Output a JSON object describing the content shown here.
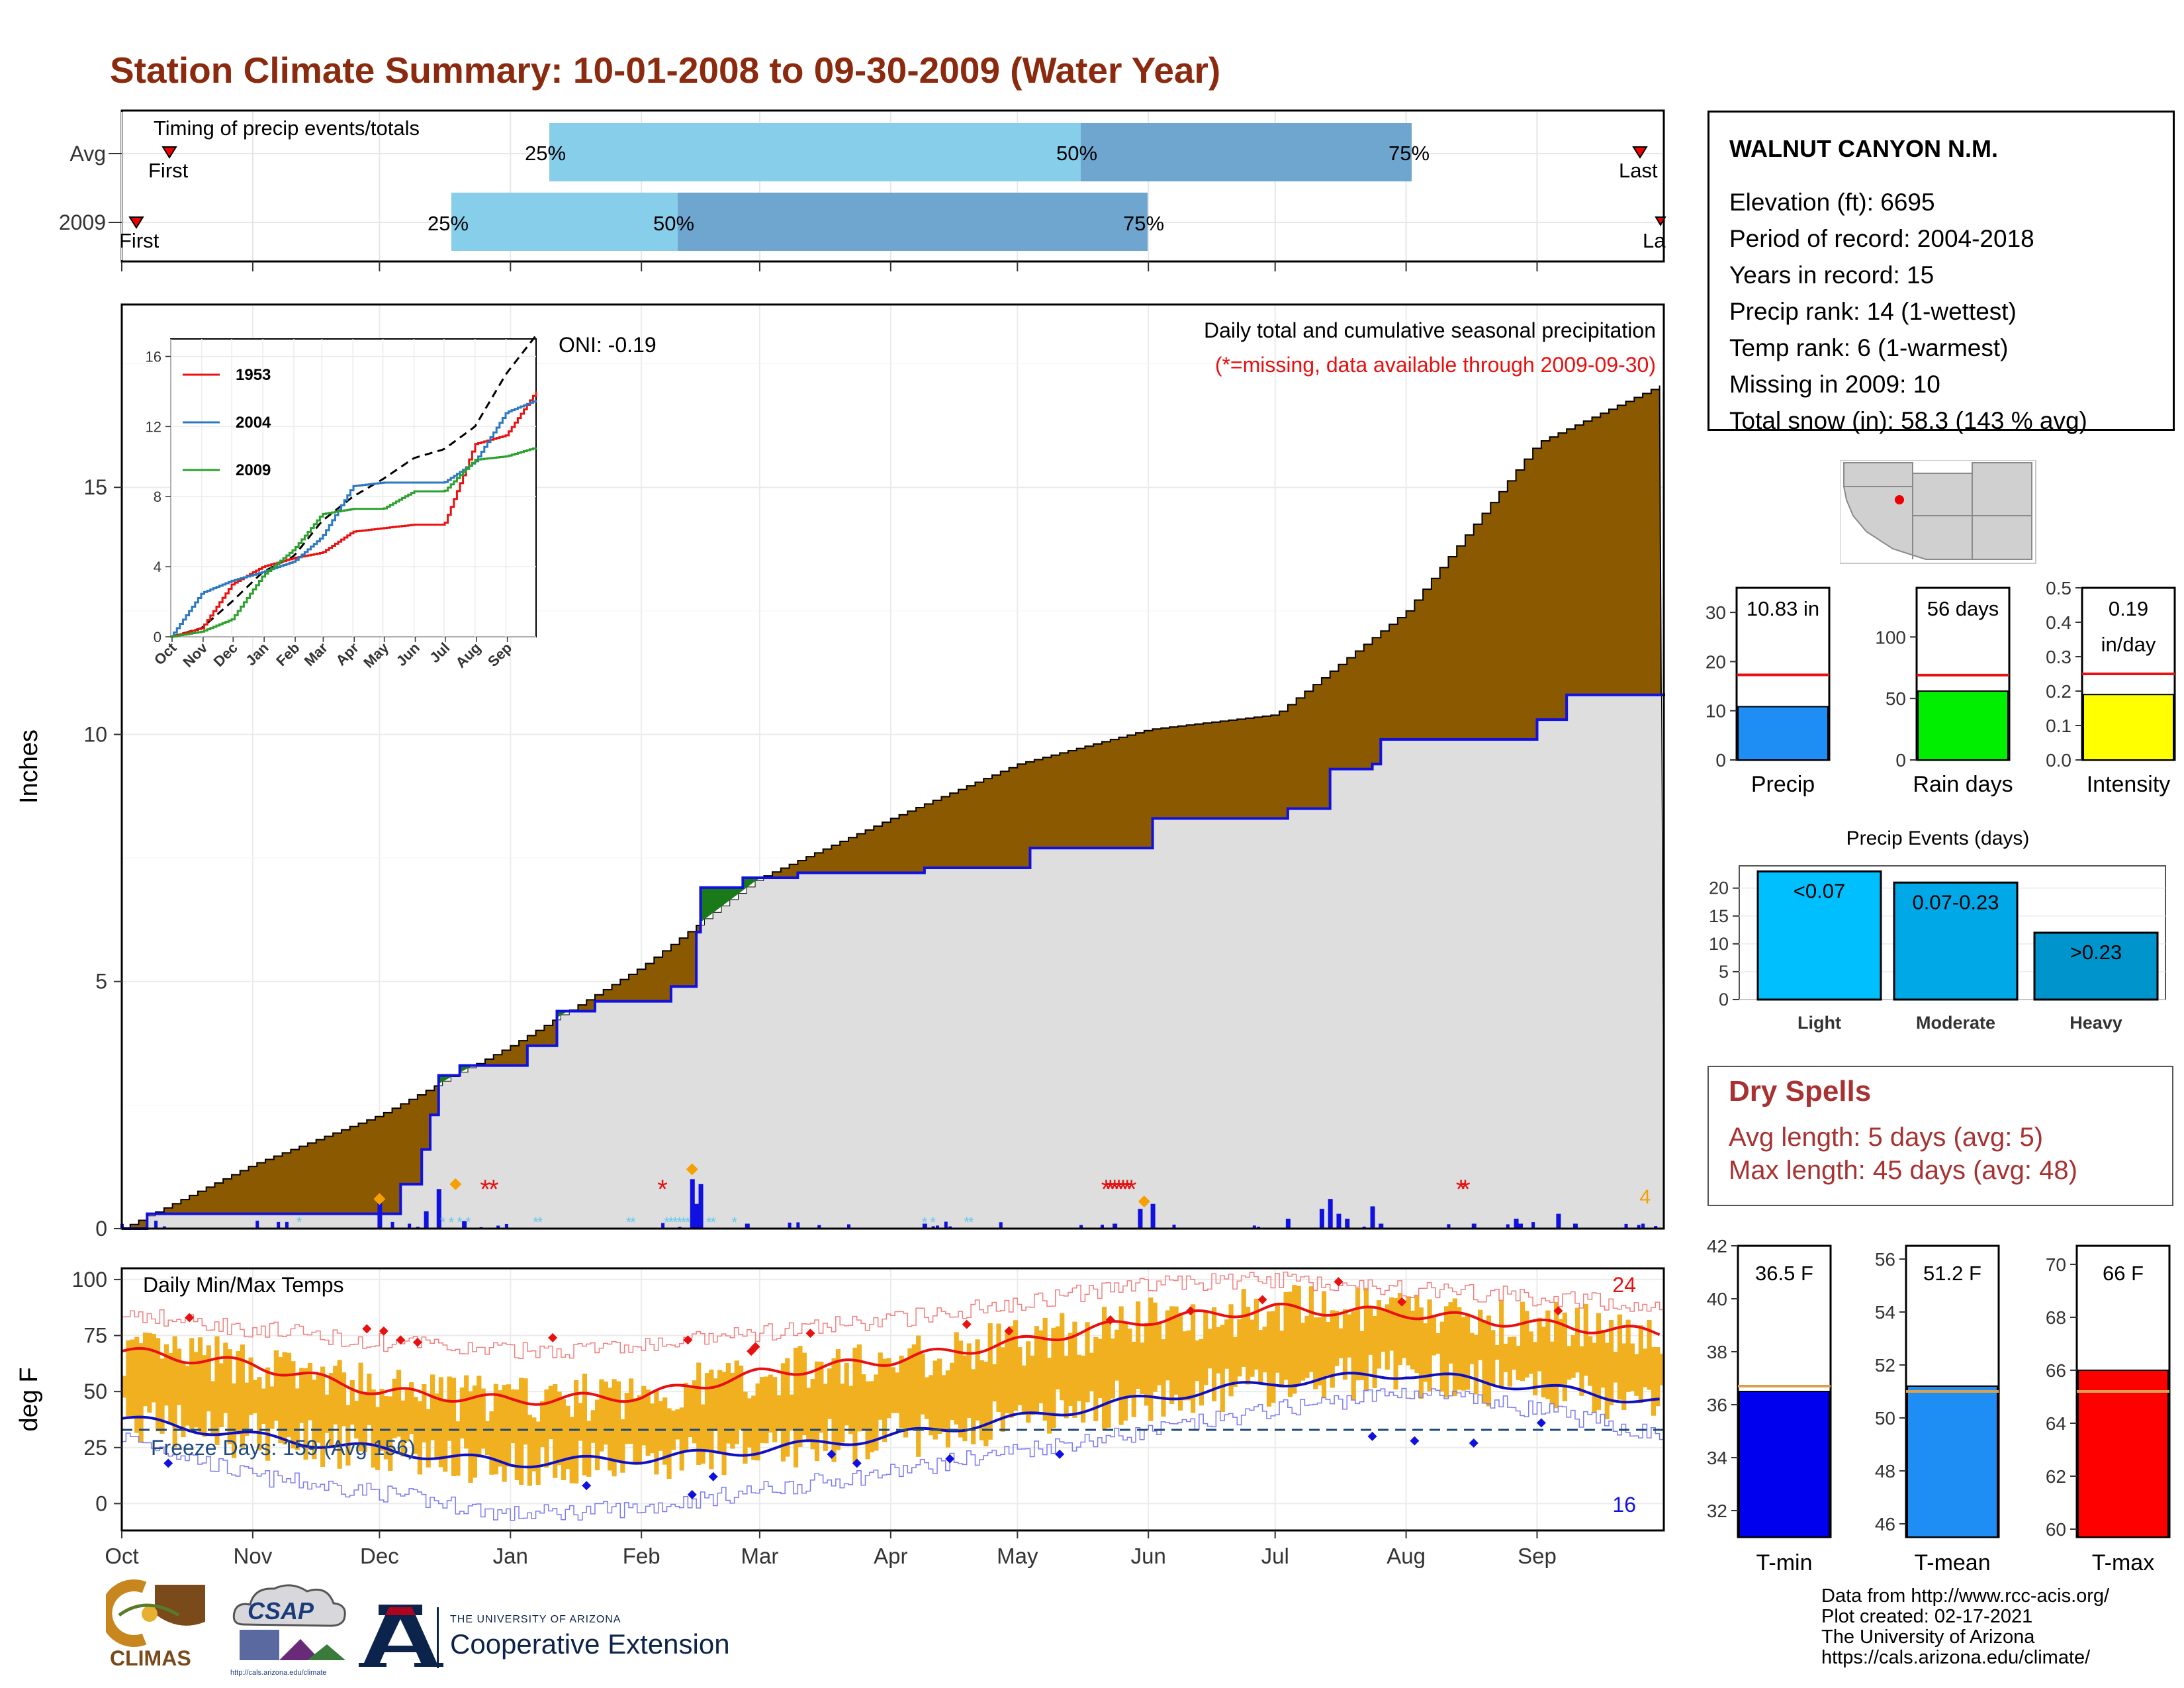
{
  "title": "Station Climate Summary: 10-01-2008 to 09-30-2009 (Water Year)",
  "colors": {
    "title": "#8b2a0e",
    "brown": "#8b5a00",
    "green": "#1a7a1a",
    "gray": "#dedede",
    "blue": "#1010e0",
    "orange": "#f0b020",
    "red": "#e81010",
    "drySpell": "#a83232"
  },
  "timing": {
    "label": "Timing of precip events/totals",
    "rows": [
      {
        "name": "Avg",
        "first": "First",
        "last": "Last",
        "p25": "25%",
        "p50": "50%",
        "p75": "75%"
      },
      {
        "name": "2009",
        "first": "First",
        "last": "La",
        "p25": "25%",
        "p50": "50%",
        "p75": "75%"
      }
    ]
  },
  "precip": {
    "ylabel": "Inches",
    "caption": "Daily total and cumulative seasonal precipitation",
    "missing_note": "(*=missing, data available through 2009-09-30)",
    "oni": "ONI: -0.19",
    "corner_count": "4",
    "yticks": [
      "0",
      "5",
      "10",
      "15"
    ]
  },
  "inset": {
    "legend": [
      "1953",
      "2004",
      "2009"
    ],
    "yticks": [
      "0",
      "4",
      "8",
      "12",
      "16"
    ],
    "xticks": [
      "Oct",
      "Nov",
      "Dec",
      "Jan",
      "Feb",
      "Mar",
      "Apr",
      "May",
      "Jun",
      "Jul",
      "Aug",
      "Sep"
    ]
  },
  "temps": {
    "label": "Daily Min/Max Temps",
    "ylabel": "deg F",
    "freeze": "Freeze Days: 159 (Avg 156)",
    "count_hot": "24",
    "count_cold": "16",
    "yticks": [
      "0",
      "25",
      "50",
      "75",
      "100"
    ]
  },
  "xticks": [
    "Oct",
    "Nov",
    "Dec",
    "Jan",
    "Feb",
    "Mar",
    "Apr",
    "May",
    "Jun",
    "Jul",
    "Aug",
    "Sep"
  ],
  "station": {
    "name": "WALNUT CANYON N.M.",
    "lines": [
      "Elevation (ft): 6695",
      "Period of record: 2004-2018",
      "Years in record: 15",
      "Precip rank: 14 (1-wettest)",
      "Temp rank: 6 (1-warmest)",
      "Missing in 2009: 10",
      "Total snow (in): 58.3 (143 % avg)"
    ]
  },
  "summary_bars": {
    "precip": {
      "label": "Precip",
      "value_text": "10.83 in",
      "value": 10.83,
      "avg": 17.3,
      "ymax": 35,
      "yticks": [
        "0",
        "10",
        "20",
        "30"
      ]
    },
    "rain_days": {
      "label": "Rain days",
      "value_text": "56 days",
      "value": 56,
      "avg": 69,
      "ymax": 140,
      "yticks": [
        "0",
        "50",
        "100"
      ]
    },
    "intensity": {
      "label": "Intensity",
      "value_text": "0.19",
      "value_text2": "in/day",
      "value": 0.19,
      "avg": 0.25,
      "ymax": 0.5,
      "yticks": [
        "0.0",
        "0.1",
        "0.2",
        "0.3",
        "0.4",
        "0.5"
      ]
    }
  },
  "precip_events": {
    "title": "Precip Events (days)",
    "categories": [
      "Light",
      "Moderate",
      "Heavy"
    ],
    "labels": [
      "<0.07",
      "0.07-0.23",
      ">0.23"
    ],
    "values": [
      23,
      21,
      12
    ],
    "yticks": [
      "0",
      "5",
      "10",
      "15",
      "20"
    ]
  },
  "dry_spells": {
    "title": "Dry Spells",
    "avg_line": "Avg length: 5 days (avg: 5)",
    "max_line": "Max length: 45 days (avg: 48)"
  },
  "temp_bars": {
    "tmin": {
      "label": "T-min",
      "value_text": "36.5 F",
      "value": 36.5,
      "avg": 36.7,
      "ymin": 31,
      "ymax": 42,
      "yticks": [
        "32",
        "34",
        "36",
        "38",
        "40",
        "42"
      ]
    },
    "tmean": {
      "label": "T-mean",
      "value_text": "51.2 F",
      "value": 51.2,
      "avg": 51.0,
      "ymin": 45.5,
      "ymax": 56.5,
      "yticks": [
        "46",
        "48",
        "50",
        "52",
        "54",
        "56"
      ]
    },
    "tmax": {
      "label": "T-max",
      "value_text": "66 F",
      "value": 66,
      "avg": 65.2,
      "ymin": 59.7,
      "ymax": 70.7,
      "yticks": [
        "60",
        "62",
        "64",
        "66",
        "68",
        "70"
      ]
    }
  },
  "credits": [
    "Data from http://www.rcc-acis.org/",
    "Plot created: 02-17-2021",
    "The University of Arizona",
    "https://cals.arizona.edu/climate/"
  ],
  "logos": {
    "climas": "CLIMAS",
    "csap": "CSAP",
    "csap_url": "http://cals.arizona.edu/climate",
    "ua_small": "THE UNIVERSITY OF ARIZONA",
    "ua_big": "Cooperative Extension"
  },
  "chart_data": [
    {
      "type": "area",
      "caption": "Daily total and cumulative seasonal precipitation",
      "ylabel": "Inches",
      "ylim": [
        0,
        18.7
      ],
      "x": [
        "Oct",
        "Nov",
        "Dec",
        "Jan",
        "Feb",
        "Mar",
        "Apr",
        "May",
        "Jun",
        "Jul",
        "Aug",
        "Sep",
        "Sep 30"
      ],
      "series": [
        {
          "values": [
            0,
            1.3,
            2.3,
            3.7,
            5.3,
            7.1,
            8.3,
            9.4,
            10.1,
            10.4,
            12.5,
            15.9,
            17.1
          ]
        },
        {
          "values": [
            0,
            0.3,
            0.3,
            3.1,
            4.7,
            7.1,
            7.3,
            7.3,
            8.3,
            8.3,
            10.1,
            10.3,
            10.83
          ]
        }
      ]
    },
    {
      "type": "line",
      "ylim": [
        0,
        17
      ],
      "x": [
        "Oct",
        "Nov",
        "Dec",
        "Jan",
        "Feb",
        "Mar",
        "Apr",
        "May",
        "Jun",
        "Jul",
        "Aug",
        "Sep",
        "Sep 30"
      ],
      "series": [
        {
          "values": [
            0,
            0.5,
            2.0,
            3.7,
            4.6,
            6.6,
            8.0,
            9.0,
            10.2,
            10.7,
            12.0,
            15.0,
            17.2
          ]
        },
        {
          "name": "1953",
          "values": [
            0,
            0.5,
            3.0,
            4.0,
            4.5,
            4.8,
            6.0,
            6.2,
            6.4,
            6.4,
            11.0,
            11.5,
            14.0
          ]
        },
        {
          "name": "2004",
          "values": [
            0,
            2.5,
            3.2,
            3.7,
            4.3,
            5.7,
            8.6,
            8.8,
            8.8,
            8.8,
            10.0,
            12.8,
            13.5
          ]
        },
        {
          "name": "2009",
          "values": [
            0,
            0.3,
            1.0,
            3.5,
            5.0,
            7.0,
            7.3,
            7.3,
            8.3,
            8.3,
            10.1,
            10.3,
            10.8
          ]
        }
      ]
    },
    {
      "type": "line",
      "ylabel": "deg F",
      "ylim": [
        -12,
        105
      ],
      "x": [
        "Oct",
        "Nov",
        "Dec",
        "Jan",
        "Feb",
        "Mar",
        "Apr",
        "May",
        "Jun",
        "Jul",
        "Aug",
        "Sep",
        "Sep 30"
      ],
      "series": [
        {
          "values": [
            68,
            62,
            50,
            46,
            48,
            58,
            64,
            72,
            82,
            87,
            85,
            80,
            76
          ]
        },
        {
          "values": [
            38,
            30,
            24,
            18,
            20,
            24,
            30,
            38,
            47,
            54,
            58,
            52,
            45
          ]
        },
        {
          "values": [
            85,
            78,
            72,
            68,
            70,
            76,
            82,
            90,
            98,
            100,
            96,
            92,
            88
          ]
        },
        {
          "values": [
            30,
            12,
            5,
            -5,
            -2,
            6,
            14,
            24,
            32,
            42,
            50,
            42,
            30
          ]
        }
      ]
    },
    {
      "type": "bar",
      "categories": [
        "Light",
        "Moderate",
        "Heavy"
      ],
      "values": [
        23,
        21,
        12
      ]
    }
  ]
}
